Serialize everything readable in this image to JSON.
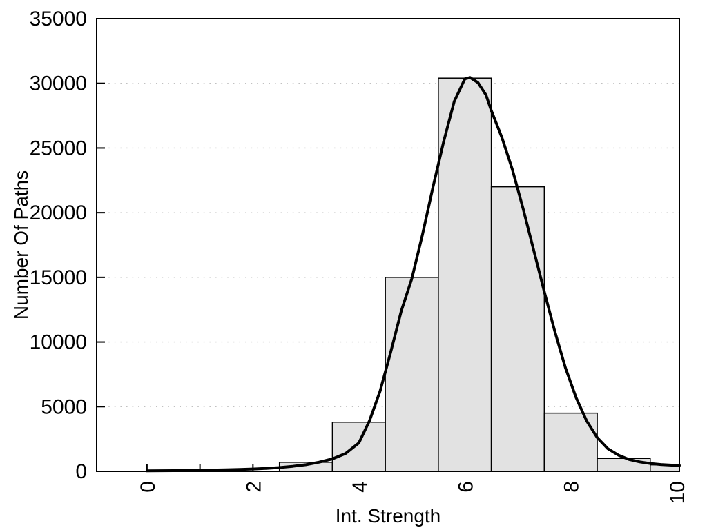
{
  "chart_data": {
    "type": "bar",
    "subtype": "histogram-with-density-curve",
    "title": "",
    "xlabel": "Int. Strength",
    "ylabel": "Number Of Paths",
    "xlim": [
      -0.95,
      10.05
    ],
    "ylim": [
      0,
      35000
    ],
    "x_major_tick_labels": [
      "0",
      "2",
      "4",
      "6",
      "8",
      "10"
    ],
    "x_major_ticks": [
      0,
      2,
      4,
      6,
      8,
      10
    ],
    "x_minor_ticks": [
      1,
      3,
      5,
      7,
      9
    ],
    "x_tick_label_rotation_deg": -90,
    "y_ticks": [
      0,
      5000,
      10000,
      15000,
      20000,
      25000,
      30000,
      35000
    ],
    "y_tick_labels": [
      "0",
      "5000",
      "10000",
      "15000",
      "20000",
      "25000",
      "30000",
      "35000"
    ],
    "grid": {
      "horizontal_dotted_at": [
        5000,
        10000,
        15000,
        20000,
        25000,
        30000
      ],
      "style": "dotted"
    },
    "legend": "none",
    "bin_width": 1,
    "categories": [
      3,
      4,
      5,
      6,
      7,
      8,
      9,
      10
    ],
    "values": [
      700,
      3800,
      15000,
      30400,
      22000,
      4500,
      1000,
      500
    ],
    "bars_note": "bins centered on integers, edges at n-0.5 to n+0.5; last bin clipped at right plot edge",
    "series": [
      {
        "name": "density-curve",
        "type": "line",
        "points": [
          [
            0.0,
            40
          ],
          [
            0.25,
            48
          ],
          [
            0.5,
            55
          ],
          [
            0.75,
            68
          ],
          [
            1.0,
            82
          ],
          [
            1.25,
            100
          ],
          [
            1.5,
            122
          ],
          [
            1.75,
            150
          ],
          [
            2.0,
            182
          ],
          [
            2.25,
            230
          ],
          [
            2.5,
            295
          ],
          [
            2.75,
            390
          ],
          [
            3.0,
            510
          ],
          [
            3.25,
            710
          ],
          [
            3.5,
            960
          ],
          [
            3.75,
            1380
          ],
          [
            4.0,
            2200
          ],
          [
            4.2,
            3900
          ],
          [
            4.4,
            6200
          ],
          [
            4.6,
            9200
          ],
          [
            4.8,
            12400
          ],
          [
            5.0,
            14900
          ],
          [
            5.2,
            18300
          ],
          [
            5.4,
            22000
          ],
          [
            5.6,
            25500
          ],
          [
            5.8,
            28600
          ],
          [
            6.0,
            30350
          ],
          [
            6.1,
            30450
          ],
          [
            6.25,
            30050
          ],
          [
            6.4,
            29100
          ],
          [
            6.5,
            27900
          ],
          [
            6.7,
            25800
          ],
          [
            6.9,
            23300
          ],
          [
            7.1,
            20300
          ],
          [
            7.3,
            17100
          ],
          [
            7.5,
            13900
          ],
          [
            7.7,
            10800
          ],
          [
            7.9,
            8000
          ],
          [
            8.1,
            5700
          ],
          [
            8.3,
            3900
          ],
          [
            8.5,
            2600
          ],
          [
            8.7,
            1750
          ],
          [
            8.9,
            1250
          ],
          [
            9.1,
            920
          ],
          [
            9.3,
            730
          ],
          [
            9.5,
            610
          ],
          [
            9.7,
            530
          ],
          [
            9.9,
            480
          ],
          [
            10.05,
            455
          ]
        ]
      }
    ],
    "colors": {
      "background": "#ffffff",
      "bar_fill": "#e2e2e2",
      "bar_border": "#000000",
      "curve": "#000000",
      "grid": "#c0c0c0",
      "axis": "#000000",
      "text": "#000000"
    }
  }
}
